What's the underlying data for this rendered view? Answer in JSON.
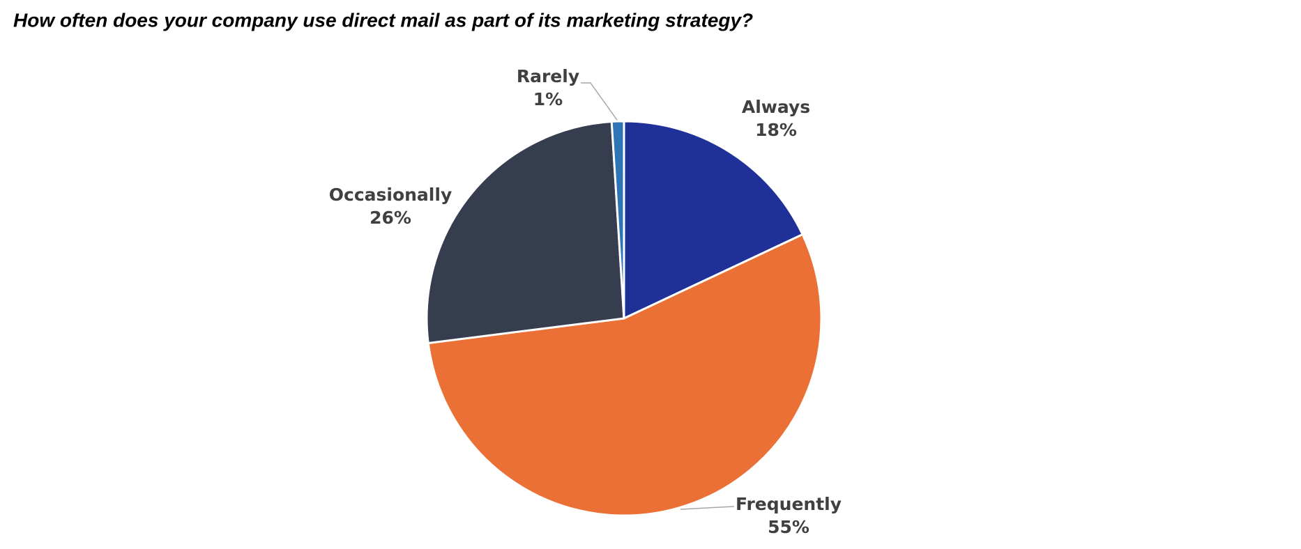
{
  "chart_data": {
    "type": "pie",
    "title": "How often does your company use direct mail as part of its marketing strategy?",
    "categories": [
      "Always",
      "Frequently",
      "Occasionally",
      "Rarely"
    ],
    "values": [
      18,
      55,
      26,
      1
    ],
    "value_labels": [
      "18%",
      "55%",
      "26%",
      "1%"
    ],
    "colors": [
      "#203099",
      "#eb7035",
      "#353d4e",
      "#2e75b6"
    ]
  }
}
